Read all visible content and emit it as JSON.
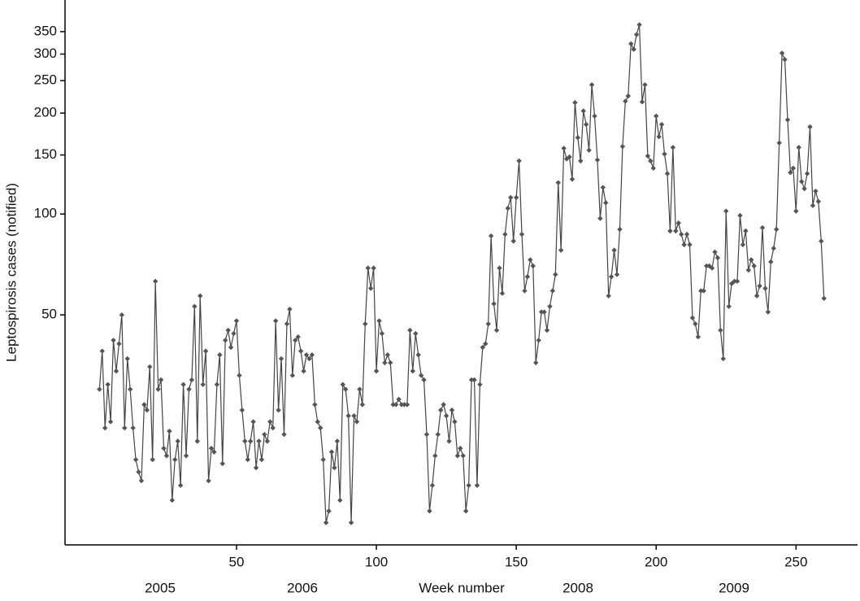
{
  "chart_data": {
    "type": "line",
    "ylabel": "Leptospirosis cases (notified)",
    "xlabel": "Week number",
    "year_labels": [
      "2005",
      "2006",
      "2008",
      "2009"
    ],
    "log_y": true,
    "grid": false,
    "xlim": [
      -11.3,
      272
    ],
    "ylim": [
      10.3,
      435
    ],
    "xticks": [
      50,
      100,
      150,
      200,
      250
    ],
    "yticks": [
      50,
      100,
      150,
      200,
      250,
      300,
      350
    ],
    "x": [
      1,
      2,
      3,
      4,
      5,
      6,
      7,
      8,
      9,
      10,
      11,
      12,
      13,
      14,
      15,
      16,
      17,
      18,
      19,
      20,
      21,
      22,
      23,
      24,
      25,
      26,
      27,
      28,
      29,
      30,
      31,
      32,
      33,
      34,
      35,
      36,
      37,
      38,
      39,
      40,
      41,
      42,
      43,
      44,
      45,
      46,
      47,
      48,
      49,
      50,
      51,
      52,
      53,
      54,
      55,
      56,
      57,
      58,
      59,
      60,
      61,
      62,
      63,
      64,
      65,
      66,
      67,
      68,
      69,
      70,
      71,
      72,
      73,
      74,
      75,
      76,
      77,
      78,
      79,
      80,
      81,
      82,
      83,
      84,
      85,
      86,
      87,
      88,
      89,
      90,
      91,
      92,
      93,
      94,
      95,
      96,
      97,
      98,
      99,
      100,
      101,
      102,
      103,
      104,
      105,
      106,
      107,
      108,
      109,
      110,
      111,
      112,
      113,
      114,
      115,
      116,
      117,
      118,
      119,
      120,
      121,
      122,
      123,
      124,
      125,
      126,
      127,
      128,
      129,
      130,
      131,
      132,
      133,
      134,
      135,
      136,
      137,
      138,
      139,
      140,
      141,
      142,
      143,
      144,
      145,
      146,
      147,
      148,
      149,
      150,
      151,
      152,
      153,
      154,
      155,
      156,
      157,
      158,
      159,
      160,
      161,
      162,
      163,
      164,
      165,
      166,
      167,
      168,
      169,
      170,
      171,
      172,
      173,
      174,
      175,
      176,
      177,
      178,
      179,
      180,
      181,
      182,
      183,
      184,
      185,
      186,
      187,
      188,
      189,
      190,
      191,
      192,
      193,
      194,
      195,
      196,
      197,
      198,
      199,
      200,
      201,
      202,
      203,
      204,
      205,
      206,
      207,
      208,
      209,
      210,
      211,
      212,
      213,
      214,
      215,
      216,
      217,
      218,
      219,
      220,
      221,
      222,
      223,
      224,
      225,
      226,
      227,
      228,
      229,
      230,
      231,
      232,
      233,
      234,
      235,
      236,
      237,
      238,
      239,
      240,
      241,
      242,
      243,
      244,
      245,
      246,
      247,
      248,
      249,
      250,
      251,
      252,
      253,
      254,
      255,
      256,
      257,
      258,
      259,
      260
    ],
    "series": [
      {
        "color": "#444444",
        "marker_color": "#555555",
        "values": [
          30,
          39,
          23,
          31,
          24,
          42,
          34,
          41,
          50,
          23,
          37,
          30,
          23,
          18.5,
          17,
          16,
          27,
          26,
          35,
          18.5,
          63,
          30,
          32,
          20,
          19,
          22.5,
          14,
          18.5,
          21,
          15.5,
          31,
          19,
          30,
          32,
          53,
          21,
          57,
          31,
          39,
          16,
          20,
          19.5,
          31,
          38,
          18,
          42,
          45,
          40,
          44,
          48,
          33,
          26,
          21,
          18.5,
          21,
          24,
          17.5,
          21,
          18.5,
          22,
          21,
          24,
          23,
          48,
          26,
          37,
          22,
          47,
          52,
          33,
          42,
          43,
          39,
          34,
          38,
          37,
          38,
          27,
          24,
          23,
          18.5,
          12,
          13,
          19.5,
          17.5,
          21,
          14,
          31,
          30,
          25,
          12,
          25,
          24,
          30,
          27,
          47,
          69,
          60,
          69,
          34,
          48,
          44,
          36,
          38,
          36,
          27,
          27,
          28,
          27,
          27,
          27,
          45,
          34,
          44,
          38,
          33,
          32,
          22,
          13,
          15.5,
          19,
          22,
          26,
          27,
          25,
          21,
          26,
          24,
          19,
          20,
          19,
          13,
          15.5,
          32,
          32,
          15.5,
          31,
          40,
          41,
          47,
          86,
          54,
          45,
          69,
          58,
          87,
          104,
          112,
          83,
          112,
          144,
          87,
          59,
          65,
          73,
          70,
          36,
          42,
          51,
          51,
          45,
          53,
          59,
          66,
          124,
          78,
          157,
          146,
          148,
          127,
          215,
          169,
          144,
          203,
          185,
          155,
          243,
          196,
          145,
          97,
          120,
          108,
          57,
          65,
          78,
          66,
          90,
          159,
          217,
          225,
          322,
          310,
          343,
          367,
          216,
          243,
          149,
          144,
          137,
          196,
          170,
          185,
          151,
          132,
          89,
          158,
          89,
          94,
          87,
          81,
          87,
          81,
          49,
          47,
          43,
          59,
          59,
          70,
          70,
          69,
          77,
          74,
          45,
          37,
          102,
          53,
          62,
          63,
          63,
          99,
          81,
          89,
          68,
          73,
          70,
          57,
          61,
          91,
          60,
          51,
          72,
          79,
          90,
          163,
          302,
          289,
          191,
          133,
          137,
          102,
          158,
          125,
          119,
          132,
          182,
          106,
          117,
          109,
          83,
          56
        ]
      }
    ]
  }
}
